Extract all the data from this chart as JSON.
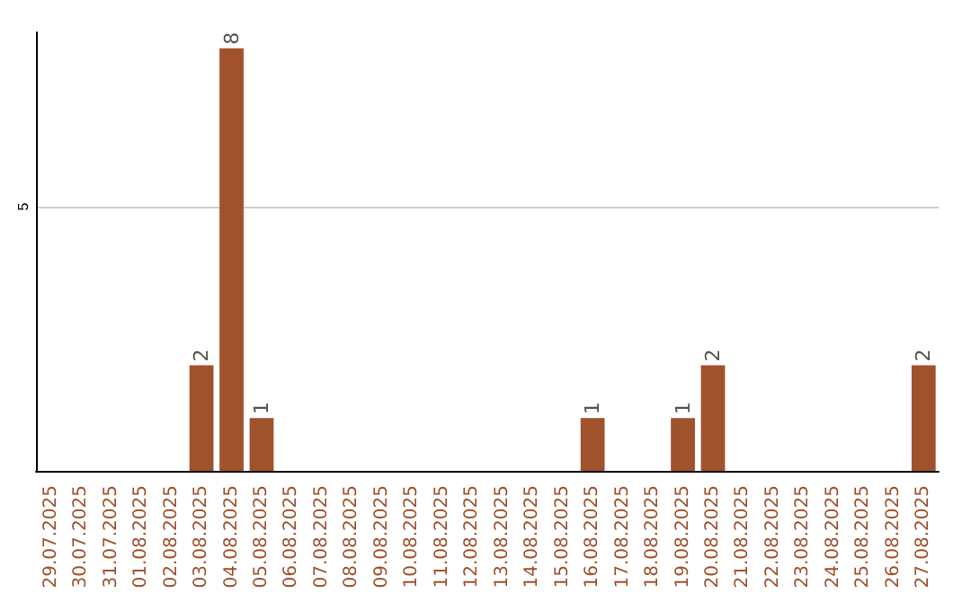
{
  "chart_data": {
    "type": "bar",
    "categories": [
      "29.07.2025",
      "30.07.2025",
      "31.07.2025",
      "01.08.2025",
      "02.08.2025",
      "03.08.2025",
      "04.08.2025",
      "05.08.2025",
      "06.08.2025",
      "07.08.2025",
      "08.08.2025",
      "09.08.2025",
      "10.08.2025",
      "11.08.2025",
      "12.08.2025",
      "13.08.2025",
      "14.08.2025",
      "15.08.2025",
      "16.08.2025",
      "17.08.2025",
      "18.08.2025",
      "19.08.2025",
      "20.08.2025",
      "21.08.2025",
      "22.08.2025",
      "23.08.2025",
      "24.08.2025",
      "25.08.2025",
      "26.08.2025",
      "27.08.2025"
    ],
    "values": [
      0,
      0,
      0,
      0,
      0,
      2,
      8,
      1,
      0,
      0,
      0,
      0,
      0,
      0,
      0,
      0,
      0,
      0,
      1,
      0,
      0,
      1,
      2,
      0,
      0,
      0,
      0,
      0,
      0,
      2
    ],
    "color": "#a0522d",
    "value_labels": [
      null,
      null,
      null,
      null,
      null,
      "2",
      "8",
      "1",
      null,
      null,
      null,
      null,
      null,
      null,
      null,
      null,
      null,
      null,
      "1",
      null,
      null,
      "1",
      "2",
      null,
      null,
      null,
      null,
      null,
      null,
      "2"
    ],
    "ylim": [
      0,
      8.3
    ],
    "yticks": [
      5
    ],
    "grid": "y"
  }
}
